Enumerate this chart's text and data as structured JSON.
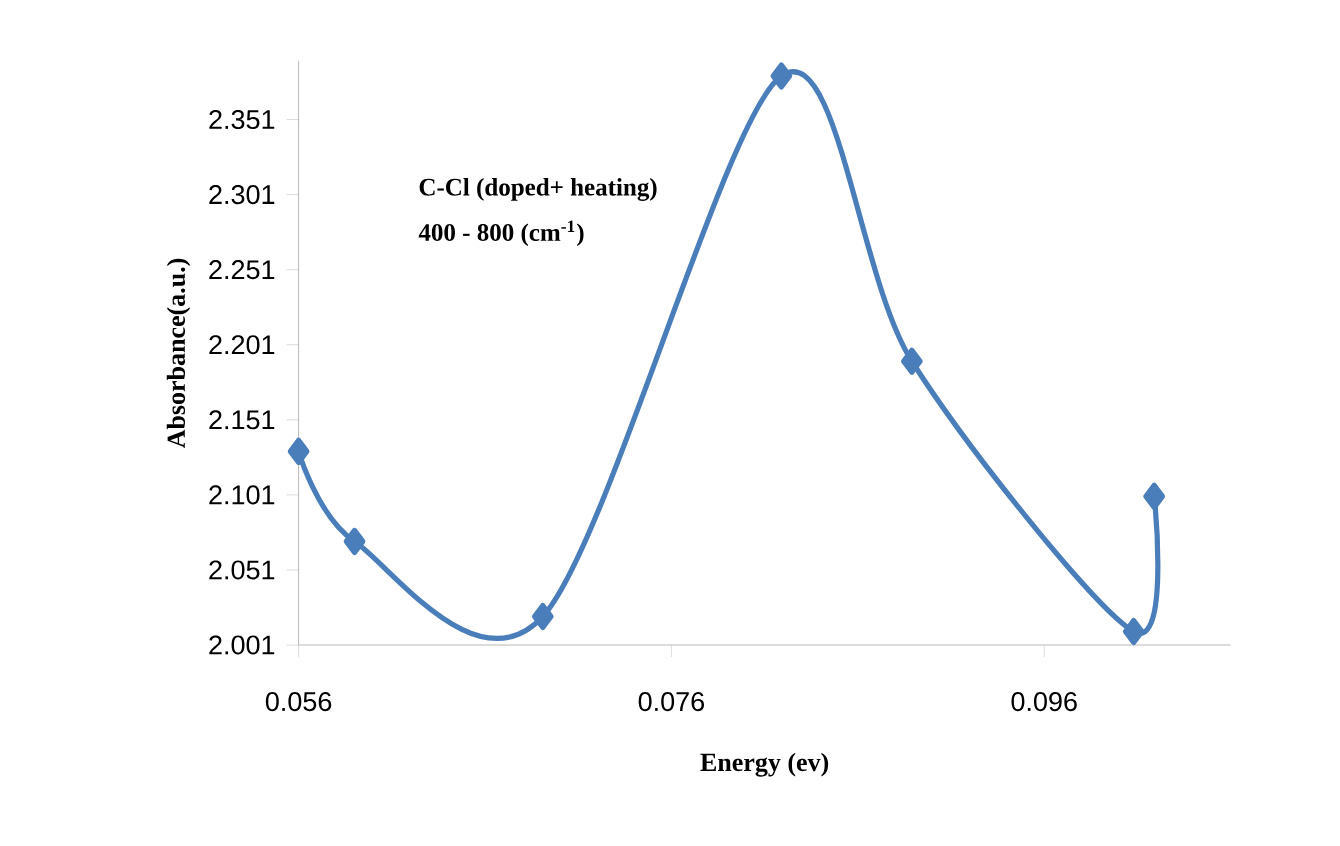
{
  "chart_data": {
    "type": "line",
    "xlabel": "Energy (ev)",
    "ylabel": "Absorbance(a.u.)",
    "annotations": [
      "C-Cl  (doped+ heating)",
      "400 - 800 (cm$^{-1}$)"
    ],
    "x": [
      0.056,
      0.059,
      0.0691,
      0.0819,
      0.0889,
      0.1008,
      0.1019
    ],
    "series": [
      {
        "color": "#4a7ebb",
        "values": [
          2.13,
          2.07,
          2.02,
          2.38,
          2.19,
          2.01,
          2.1
        ]
      }
    ],
    "xlim": [
      0.056,
      0.106
    ],
    "xticks": [
      0.056,
      0.076,
      0.096
    ],
    "ylim": [
      2.001,
      2.39
    ],
    "yticks": [
      2.001,
      2.051,
      2.101,
      2.151,
      2.201,
      2.251,
      2.301,
      2.351
    ],
    "marker": "diamond",
    "line_style": "solid"
  }
}
